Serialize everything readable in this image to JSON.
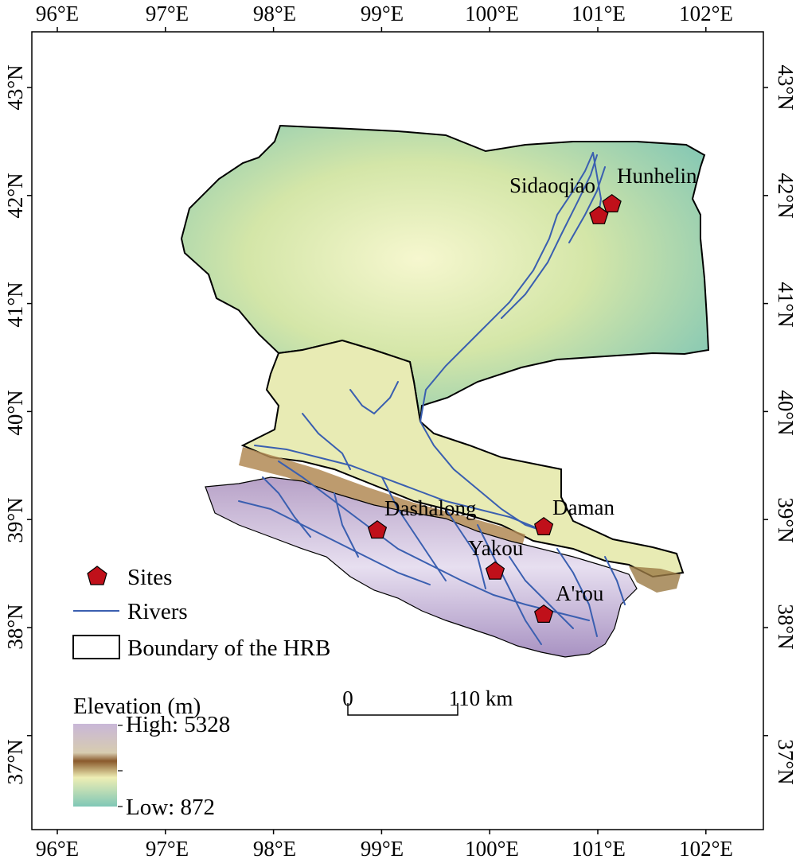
{
  "map": {
    "lon_ticks": [
      "96°E",
      "97°E",
      "98°E",
      "99°E",
      "100°E",
      "101°E",
      "102°E"
    ],
    "lat_ticks": [
      "37°N",
      "38°N",
      "39°N",
      "40°N",
      "41°N",
      "42°N",
      "43°N"
    ],
    "sites": [
      {
        "name": "Hunhelin",
        "lon": 101.13,
        "lat": 41.92
      },
      {
        "name": "Sidaoqiao",
        "lon": 101.01,
        "lat": 41.81
      },
      {
        "name": "Dashalong",
        "lon": 98.96,
        "lat": 38.9
      },
      {
        "name": "Daman",
        "lon": 100.5,
        "lat": 38.93
      },
      {
        "name": "Yakou",
        "lon": 100.05,
        "lat": 38.52
      },
      {
        "name": "A'rou",
        "lon": 100.5,
        "lat": 38.12
      }
    ],
    "colors": {
      "site_fill": "#c0101a",
      "river": "#3a5fb0",
      "boundary": "#000000",
      "elev_low": "#7fc7b6",
      "elev_mid": "#eeeeb4",
      "elev_brown": "#8a5a2c",
      "elev_high": "#c9b7d8"
    }
  },
  "legend": {
    "sites_label": "Sites",
    "rivers_label": "Rivers",
    "boundary_label": "Boundary of the HRB",
    "elevation_title": "Elevation (m)",
    "elevation_high": "High: 5328",
    "elevation_low": "Low: 872"
  },
  "scale_bar": {
    "zero_label": "0",
    "end_label": "110 km"
  }
}
